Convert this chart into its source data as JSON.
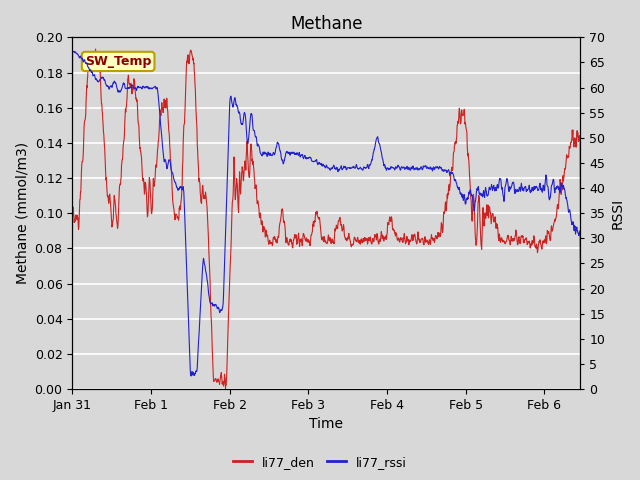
{
  "title": "Methane",
  "ylabel_left": "Methane (mmol/m3)",
  "ylabel_right": "RSSI",
  "xlabel": "Time",
  "ylim_left": [
    0.0,
    0.2
  ],
  "ylim_right": [
    0,
    70
  ],
  "yticks_left": [
    0.0,
    0.02,
    0.04,
    0.06,
    0.08,
    0.1,
    0.12,
    0.14,
    0.16,
    0.18,
    0.2
  ],
  "yticks_right": [
    0,
    5,
    10,
    15,
    20,
    25,
    30,
    35,
    40,
    45,
    50,
    55,
    60,
    65,
    70
  ],
  "bg_color": "#d8d8d8",
  "plot_bg_color": "#d8d8d8",
  "grid_color": "#ffffff",
  "line_color_red": "#cc2222",
  "line_color_blue": "#2222cc",
  "annotation_text": "SW_Temp",
  "annotation_bg": "#ffffc0",
  "annotation_edge": "#b8a000",
  "legend_red": "li77_den",
  "legend_blue": "li77_rssi",
  "xtick_labels": [
    "Jan 31",
    "Feb 1",
    "Feb 2",
    "Feb 3",
    "Feb 4",
    "Feb 5",
    "Feb 6"
  ],
  "xtick_positions": [
    0,
    24,
    48,
    72,
    96,
    120,
    144
  ],
  "title_fontsize": 12,
  "axis_label_fontsize": 10,
  "tick_fontsize": 9,
  "figsize": [
    6.4,
    4.8
  ],
  "dpi": 100
}
